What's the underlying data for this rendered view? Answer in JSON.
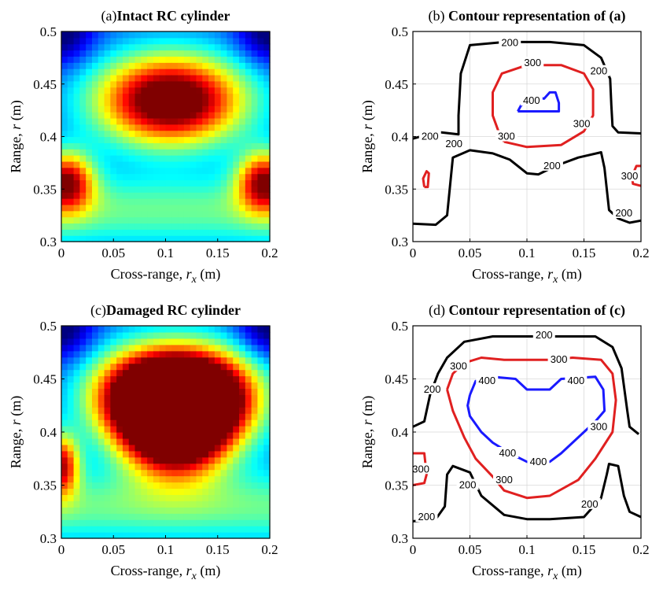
{
  "chart_data": [
    {
      "type": "heatmap",
      "panel": "a",
      "title_prefix": "(a)",
      "title": "Intact RC cylinder",
      "xlabel_pre": "Cross-range,  ",
      "xlabel_var": "r",
      "xlabel_sub": "x",
      "xlabel_post": " (m)",
      "ylabel_pre": "Range,  ",
      "ylabel_var": "r",
      "ylabel_post": " (m)",
      "xlim": [
        0,
        0.2
      ],
      "ylim": [
        0.3,
        0.5
      ],
      "xticks": [
        "0",
        "0.05",
        "0.1",
        "0.15",
        "0.2"
      ],
      "yticks": [
        "0.3",
        "0.35",
        "0.4",
        "0.45",
        "0.5"
      ],
      "colormap": "jet",
      "value_range": [
        0,
        450
      ],
      "hotspots": [
        {
          "x": 0.105,
          "y": 0.435,
          "value": 430,
          "sx": 0.05,
          "sy": 0.03
        },
        {
          "x": 0.005,
          "y": 0.358,
          "value": 310,
          "sx": 0.018,
          "sy": 0.02
        },
        {
          "x": 0.195,
          "y": 0.358,
          "value": 310,
          "sx": 0.018,
          "sy": 0.02
        }
      ]
    },
    {
      "type": "contour",
      "panel": "b",
      "title_prefix": "(b) ",
      "title": "Contour representation of (a)",
      "xlabel_pre": "Cross-range,  ",
      "xlabel_var": "r",
      "xlabel_sub": "x",
      "xlabel_post": " (m)",
      "ylabel_pre": "Range,  ",
      "ylabel_var": "r",
      "ylabel_post": " (m)",
      "xlim": [
        0,
        0.2
      ],
      "ylim": [
        0.3,
        0.5
      ],
      "xticks": [
        "0",
        "0.05",
        "0.1",
        "0.15",
        "0.2"
      ],
      "yticks": [
        "0.3",
        "0.35",
        "0.4",
        "0.45",
        "0.5"
      ],
      "grid": true,
      "levels": [
        {
          "level": "200",
          "color": "#000000",
          "paths": [
            [
              [
                0.0,
                0.398
              ],
              [
                0.01,
                0.401
              ],
              [
                0.025,
                0.404
              ],
              [
                0.04,
                0.402
              ],
              [
                0.04,
                0.42
              ],
              [
                0.042,
                0.46
              ],
              [
                0.05,
                0.487
              ],
              [
                0.08,
                0.49
              ],
              [
                0.12,
                0.49
              ],
              [
                0.15,
                0.487
              ],
              [
                0.165,
                0.475
              ],
              [
                0.173,
                0.455
              ],
              [
                0.174,
                0.43
              ],
              [
                0.175,
                0.41
              ],
              [
                0.18,
                0.404
              ],
              [
                0.2,
                0.403
              ]
            ],
            [
              [
                0.0,
                0.317
              ],
              [
                0.02,
                0.316
              ],
              [
                0.03,
                0.325
              ],
              [
                0.035,
                0.38
              ],
              [
                0.05,
                0.387
              ],
              [
                0.07,
                0.384
              ],
              [
                0.085,
                0.378
              ],
              [
                0.1,
                0.365
              ],
              [
                0.11,
                0.364
              ],
              [
                0.125,
                0.372
              ],
              [
                0.145,
                0.38
              ],
              [
                0.165,
                0.385
              ],
              [
                0.168,
                0.37
              ],
              [
                0.172,
                0.33
              ],
              [
                0.18,
                0.322
              ],
              [
                0.19,
                0.318
              ],
              [
                0.2,
                0.32
              ]
            ]
          ],
          "labels": [
            {
              "x": 0.015,
              "y": 0.4,
              "text": "200"
            },
            {
              "x": 0.036,
              "y": 0.393,
              "text": "200"
            },
            {
              "x": 0.085,
              "y": 0.489,
              "text": "200"
            },
            {
              "x": 0.163,
              "y": 0.462,
              "text": "200"
            },
            {
              "x": 0.122,
              "y": 0.372,
              "text": "200"
            },
            {
              "x": 0.185,
              "y": 0.327,
              "text": "200"
            }
          ]
        },
        {
          "level": "300",
          "color": "#e02020",
          "paths": [
            [
              [
                0.08,
                0.395
              ],
              [
                0.1,
                0.39
              ],
              [
                0.13,
                0.392
              ],
              [
                0.15,
                0.405
              ],
              [
                0.158,
                0.42
              ],
              [
                0.158,
                0.445
              ],
              [
                0.15,
                0.46
              ],
              [
                0.13,
                0.468
              ],
              [
                0.1,
                0.468
              ],
              [
                0.078,
                0.46
              ],
              [
                0.07,
                0.442
              ],
              [
                0.07,
                0.42
              ],
              [
                0.075,
                0.405
              ],
              [
                0.08,
                0.395
              ]
            ],
            [
              [
                0.01,
                0.352
              ],
              [
                0.013,
                0.352
              ],
              [
                0.014,
                0.365
              ],
              [
                0.012,
                0.367
              ],
              [
                0.009,
                0.36
              ],
              [
                0.01,
                0.352
              ]
            ],
            [
              [
                0.2,
                0.353
              ],
              [
                0.193,
                0.355
              ],
              [
                0.192,
                0.362
              ],
              [
                0.196,
                0.372
              ],
              [
                0.2,
                0.372
              ]
            ]
          ],
          "labels": [
            {
              "x": 0.105,
              "y": 0.47,
              "text": "300"
            },
            {
              "x": 0.082,
              "y": 0.4,
              "text": "300"
            },
            {
              "x": 0.148,
              "y": 0.412,
              "text": "300"
            },
            {
              "x": 0.19,
              "y": 0.362,
              "text": "300"
            }
          ]
        },
        {
          "level": "400",
          "color": "#1a1aff",
          "paths": [
            [
              [
                0.092,
                0.424
              ],
              [
                0.095,
                0.43
              ],
              [
                0.1,
                0.432
              ],
              [
                0.105,
                0.438
              ],
              [
                0.115,
                0.436
              ],
              [
                0.12,
                0.442
              ],
              [
                0.125,
                0.442
              ],
              [
                0.128,
                0.432
              ],
              [
                0.128,
                0.424
              ],
              [
                0.115,
                0.424
              ],
              [
                0.1,
                0.424
              ],
              [
                0.092,
                0.424
              ]
            ]
          ],
          "labels": [
            {
              "x": 0.104,
              "y": 0.434,
              "text": "400"
            }
          ]
        }
      ]
    },
    {
      "type": "heatmap",
      "panel": "c",
      "title_prefix": "(c)",
      "title": "Damaged RC cylinder",
      "xlabel_pre": "Cross-range,  ",
      "xlabel_var": "r",
      "xlabel_sub": "x",
      "xlabel_post": " (m)",
      "ylabel_pre": "Range,  ",
      "ylabel_var": "r",
      "ylabel_post": " (m)",
      "xlim": [
        0,
        0.2
      ],
      "ylim": [
        0.3,
        0.5
      ],
      "xticks": [
        "0",
        "0.05",
        "0.1",
        "0.15",
        "0.2"
      ],
      "yticks": [
        "0.3",
        "0.35",
        "0.4",
        "0.45",
        "0.5"
      ],
      "colormap": "jet",
      "value_range": [
        0,
        450
      ],
      "hotspots": [
        {
          "x": 0.085,
          "y": 0.435,
          "value": 430,
          "sx": 0.04,
          "sy": 0.03
        },
        {
          "x": 0.135,
          "y": 0.435,
          "value": 430,
          "sx": 0.04,
          "sy": 0.03
        },
        {
          "x": 0.11,
          "y": 0.4,
          "value": 420,
          "sx": 0.035,
          "sy": 0.03
        },
        {
          "x": 0.0,
          "y": 0.37,
          "value": 300,
          "sx": 0.012,
          "sy": 0.02
        }
      ]
    },
    {
      "type": "contour",
      "panel": "d",
      "title_prefix": "(d) ",
      "title": "Contour representation of (c)",
      "xlabel_pre": "Cross-range,  ",
      "xlabel_var": "r",
      "xlabel_sub": "x",
      "xlabel_post": " (m)",
      "ylabel_pre": "Range,  ",
      "ylabel_var": "r",
      "ylabel_post": " (m)",
      "xlim": [
        0,
        0.2
      ],
      "ylim": [
        0.3,
        0.5
      ],
      "xticks": [
        "0",
        "0.05",
        "0.1",
        "0.15",
        "0.2"
      ],
      "yticks": [
        "0.3",
        "0.35",
        "0.4",
        "0.45",
        "0.5"
      ],
      "grid": true,
      "levels": [
        {
          "level": "200",
          "color": "#000000",
          "paths": [
            [
              [
                0.0,
                0.405
              ],
              [
                0.01,
                0.41
              ],
              [
                0.015,
                0.435
              ],
              [
                0.022,
                0.455
              ],
              [
                0.03,
                0.47
              ],
              [
                0.045,
                0.485
              ],
              [
                0.07,
                0.49
              ],
              [
                0.1,
                0.49
              ],
              [
                0.13,
                0.49
              ],
              [
                0.16,
                0.49
              ],
              [
                0.175,
                0.48
              ],
              [
                0.183,
                0.46
              ],
              [
                0.188,
                0.42
              ],
              [
                0.19,
                0.405
              ],
              [
                0.198,
                0.398
              ]
            ],
            [
              [
                0.0,
                0.316
              ],
              [
                0.02,
                0.318
              ],
              [
                0.028,
                0.33
              ],
              [
                0.03,
                0.36
              ],
              [
                0.035,
                0.368
              ],
              [
                0.05,
                0.362
              ],
              [
                0.06,
                0.34
              ],
              [
                0.08,
                0.322
              ],
              [
                0.1,
                0.318
              ],
              [
                0.12,
                0.318
              ],
              [
                0.15,
                0.32
              ],
              [
                0.165,
                0.338
              ],
              [
                0.17,
                0.36
              ],
              [
                0.172,
                0.37
              ],
              [
                0.18,
                0.368
              ],
              [
                0.185,
                0.34
              ],
              [
                0.19,
                0.325
              ],
              [
                0.2,
                0.32
              ]
            ]
          ],
          "labels": [
            {
              "x": 0.115,
              "y": 0.491,
              "text": "200"
            },
            {
              "x": 0.017,
              "y": 0.44,
              "text": "200"
            },
            {
              "x": 0.048,
              "y": 0.35,
              "text": "200"
            },
            {
              "x": 0.012,
              "y": 0.32,
              "text": "200"
            },
            {
              "x": 0.155,
              "y": 0.332,
              "text": "200"
            }
          ]
        },
        {
          "level": "300",
          "color": "#e02020",
          "paths": [
            [
              [
                0.03,
                0.44
              ],
              [
                0.035,
                0.455
              ],
              [
                0.045,
                0.465
              ],
              [
                0.06,
                0.47
              ],
              [
                0.08,
                0.468
              ],
              [
                0.1,
                0.468
              ],
              [
                0.12,
                0.468
              ],
              [
                0.14,
                0.47
              ],
              [
                0.165,
                0.468
              ],
              [
                0.175,
                0.455
              ],
              [
                0.178,
                0.43
              ],
              [
                0.175,
                0.4
              ],
              [
                0.16,
                0.375
              ],
              [
                0.145,
                0.355
              ],
              [
                0.12,
                0.34
              ],
              [
                0.1,
                0.338
              ],
              [
                0.08,
                0.345
              ],
              [
                0.07,
                0.358
              ],
              [
                0.055,
                0.375
              ],
              [
                0.045,
                0.395
              ],
              [
                0.035,
                0.42
              ],
              [
                0.03,
                0.44
              ]
            ],
            [
              [
                0.0,
                0.38
              ],
              [
                0.01,
                0.38
              ],
              [
                0.012,
                0.36
              ],
              [
                0.01,
                0.352
              ],
              [
                0.0,
                0.35
              ]
            ]
          ],
          "labels": [
            {
              "x": 0.04,
              "y": 0.462,
              "text": "300"
            },
            {
              "x": 0.128,
              "y": 0.468,
              "text": "300"
            },
            {
              "x": 0.163,
              "y": 0.405,
              "text": "300"
            },
            {
              "x": 0.08,
              "y": 0.355,
              "text": "300"
            },
            {
              "x": 0.007,
              "y": 0.365,
              "text": "300"
            }
          ]
        },
        {
          "level": "400",
          "color": "#1a1aff",
          "paths": [
            [
              [
                0.05,
                0.435
              ],
              [
                0.055,
                0.448
              ],
              [
                0.07,
                0.452
              ],
              [
                0.09,
                0.45
              ],
              [
                0.1,
                0.44
              ],
              [
                0.12,
                0.44
              ],
              [
                0.13,
                0.45
              ],
              [
                0.16,
                0.452
              ],
              [
                0.167,
                0.44
              ],
              [
                0.168,
                0.42
              ],
              [
                0.16,
                0.41
              ],
              [
                0.15,
                0.4
              ],
              [
                0.14,
                0.39
              ],
              [
                0.13,
                0.38
              ],
              [
                0.12,
                0.372
              ],
              [
                0.11,
                0.37
              ],
              [
                0.1,
                0.372
              ],
              [
                0.085,
                0.38
              ],
              [
                0.07,
                0.39
              ],
              [
                0.06,
                0.4
              ],
              [
                0.05,
                0.415
              ],
              [
                0.048,
                0.425
              ],
              [
                0.05,
                0.435
              ]
            ]
          ],
          "labels": [
            {
              "x": 0.065,
              "y": 0.448,
              "text": "400"
            },
            {
              "x": 0.143,
              "y": 0.448,
              "text": "400"
            },
            {
              "x": 0.083,
              "y": 0.38,
              "text": "400"
            },
            {
              "x": 0.11,
              "y": 0.372,
              "text": "400"
            }
          ]
        }
      ]
    }
  ]
}
